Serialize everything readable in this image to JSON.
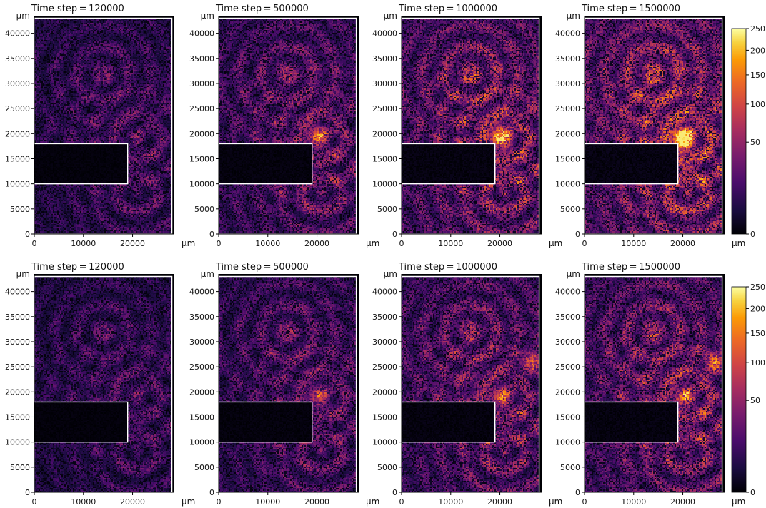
{
  "figure": {
    "axis_unit": "μm",
    "colormap_name": "inferno",
    "colormap_stops": [
      "#000004",
      "#1b0c41",
      "#4a0c6b",
      "#781c6d",
      "#a52c60",
      "#cf4446",
      "#ed6925",
      "#fb9b06",
      "#f7d13d",
      "#fcffa4"
    ]
  },
  "chart_data": [
    {
      "type": "heatmap",
      "row": 1,
      "col": 1,
      "title": "Time step = 120000",
      "x_unit": "μm",
      "y_unit": "μm",
      "xlim": [
        0,
        28500
      ],
      "ylim": [
        0,
        43500
      ],
      "x_ticks": [
        0,
        10000,
        20000
      ],
      "y_ticks": [
        0,
        5000,
        10000,
        15000,
        20000,
        25000,
        30000,
        35000,
        40000
      ],
      "boundary": [
        [
          0,
          43000
        ],
        [
          28000,
          43000
        ],
        [
          28000,
          0
        ],
        [
          0,
          0
        ],
        [
          0,
          10000
        ],
        [
          19000,
          10000
        ],
        [
          19000,
          18000
        ],
        [
          0,
          18000
        ]
      ],
      "hotspots": [],
      "intensity": 0.35
    },
    {
      "type": "heatmap",
      "row": 1,
      "col": 2,
      "title": "Time step = 500000",
      "x_unit": "μm",
      "y_unit": "μm",
      "xlim": [
        0,
        28500
      ],
      "ylim": [
        0,
        43500
      ],
      "x_ticks": [
        0,
        10000,
        20000
      ],
      "y_ticks": [
        0,
        5000,
        10000,
        15000,
        20000,
        25000,
        30000,
        35000,
        40000
      ],
      "boundary": [
        [
          0,
          43000
        ],
        [
          28000,
          43000
        ],
        [
          28000,
          0
        ],
        [
          0,
          0
        ],
        [
          0,
          10000
        ],
        [
          19000,
          10000
        ],
        [
          19000,
          18000
        ],
        [
          0,
          18000
        ]
      ],
      "hotspots": [
        [
          20000,
          19500,
          90
        ]
      ],
      "intensity": 0.45
    },
    {
      "type": "heatmap",
      "row": 1,
      "col": 3,
      "title": "Time step = 1000000",
      "x_unit": "μm",
      "y_unit": "μm",
      "xlim": [
        0,
        28500
      ],
      "ylim": [
        0,
        43500
      ],
      "x_ticks": [
        0,
        10000,
        20000
      ],
      "y_ticks": [
        0,
        5000,
        10000,
        15000,
        20000,
        25000,
        30000,
        35000,
        40000
      ],
      "boundary": [
        [
          0,
          43000
        ],
        [
          28000,
          43000
        ],
        [
          28000,
          0
        ],
        [
          0,
          0
        ],
        [
          0,
          10000
        ],
        [
          19000,
          10000
        ],
        [
          19000,
          18000
        ],
        [
          0,
          18000
        ]
      ],
      "hotspots": [
        [
          20000,
          19500,
          150
        ]
      ],
      "intensity": 0.55
    },
    {
      "type": "heatmap",
      "row": 1,
      "col": 4,
      "title": "Time step = 1500000",
      "x_unit": "μm",
      "y_unit": "μm",
      "xlim": [
        0,
        28500
      ],
      "ylim": [
        0,
        43500
      ],
      "x_ticks": [
        0,
        10000,
        20000
      ],
      "y_ticks": [
        0,
        5000,
        10000,
        15000,
        20000,
        25000,
        30000,
        35000,
        40000
      ],
      "boundary": [
        [
          0,
          43000
        ],
        [
          28000,
          43000
        ],
        [
          28000,
          0
        ],
        [
          0,
          0
        ],
        [
          0,
          10000
        ],
        [
          19000,
          10000
        ],
        [
          19000,
          18000
        ],
        [
          0,
          18000
        ]
      ],
      "hotspots": [
        [
          20000,
          19000,
          220
        ]
      ],
      "intensity": 0.62
    },
    {
      "type": "heatmap",
      "row": 2,
      "col": 1,
      "title": "Time step = 120000",
      "x_unit": "μm",
      "y_unit": "μm",
      "xlim": [
        0,
        28500
      ],
      "ylim": [
        0,
        43500
      ],
      "x_ticks": [
        0,
        10000,
        20000
      ],
      "y_ticks": [
        0,
        5000,
        10000,
        15000,
        20000,
        25000,
        30000,
        35000,
        40000
      ],
      "boundary": [
        [
          0,
          43000
        ],
        [
          28000,
          43000
        ],
        [
          28000,
          0
        ],
        [
          0,
          0
        ],
        [
          0,
          10000
        ],
        [
          19000,
          10000
        ],
        [
          19000,
          18000
        ],
        [
          0,
          18000
        ]
      ],
      "hotspots": [],
      "intensity": 0.32
    },
    {
      "type": "heatmap",
      "row": 2,
      "col": 2,
      "title": "Time step = 500000",
      "x_unit": "μm",
      "y_unit": "μm",
      "xlim": [
        0,
        28500
      ],
      "ylim": [
        0,
        43500
      ],
      "x_ticks": [
        0,
        10000,
        20000
      ],
      "y_ticks": [
        0,
        5000,
        10000,
        15000,
        20000,
        25000,
        30000,
        35000,
        40000
      ],
      "boundary": [
        [
          0,
          43000
        ],
        [
          28000,
          43000
        ],
        [
          28000,
          0
        ],
        [
          0,
          0
        ],
        [
          0,
          10000
        ],
        [
          19000,
          10000
        ],
        [
          19000,
          18000
        ],
        [
          0,
          18000
        ]
      ],
      "hotspots": [
        [
          20000,
          19000,
          60
        ]
      ],
      "intensity": 0.4
    },
    {
      "type": "heatmap",
      "row": 2,
      "col": 3,
      "title": "Time step = 1000000",
      "x_unit": "μm",
      "y_unit": "μm",
      "xlim": [
        0,
        28500
      ],
      "ylim": [
        0,
        43500
      ],
      "x_ticks": [
        0,
        10000,
        20000
      ],
      "y_ticks": [
        0,
        5000,
        10000,
        15000,
        20000,
        25000,
        30000,
        35000,
        40000
      ],
      "boundary": [
        [
          0,
          43000
        ],
        [
          28000,
          43000
        ],
        [
          28000,
          0
        ],
        [
          0,
          0
        ],
        [
          0,
          10000
        ],
        [
          19000,
          10000
        ],
        [
          19000,
          18000
        ],
        [
          0,
          18000
        ]
      ],
      "hotspots": [
        [
          20000,
          19000,
          70
        ],
        [
          26500,
          26000,
          80
        ]
      ],
      "intensity": 0.48
    },
    {
      "type": "heatmap",
      "row": 2,
      "col": 4,
      "title": "Time step = 1500000",
      "x_unit": "μm",
      "y_unit": "μm",
      "xlim": [
        0,
        28500
      ],
      "ylim": [
        0,
        43500
      ],
      "x_ticks": [
        0,
        10000,
        20000
      ],
      "y_ticks": [
        0,
        5000,
        10000,
        15000,
        20000,
        25000,
        30000,
        35000,
        40000
      ],
      "boundary": [
        [
          0,
          43000
        ],
        [
          28000,
          43000
        ],
        [
          28000,
          0
        ],
        [
          0,
          0
        ],
        [
          0,
          10000
        ],
        [
          19000,
          10000
        ],
        [
          19000,
          18000
        ],
        [
          0,
          18000
        ]
      ],
      "hotspots": [
        [
          20000,
          19000,
          70
        ],
        [
          26500,
          26000,
          90
        ]
      ],
      "intensity": 0.52
    }
  ],
  "colorbars": [
    {
      "row": 1,
      "range": [
        0,
        250
      ],
      "scale": "power",
      "ticks": [
        0,
        50,
        100,
        150,
        200,
        250
      ]
    },
    {
      "row": 2,
      "range": [
        0,
        250
      ],
      "scale": "power",
      "ticks": [
        0,
        50,
        100,
        150,
        200,
        250
      ]
    }
  ]
}
